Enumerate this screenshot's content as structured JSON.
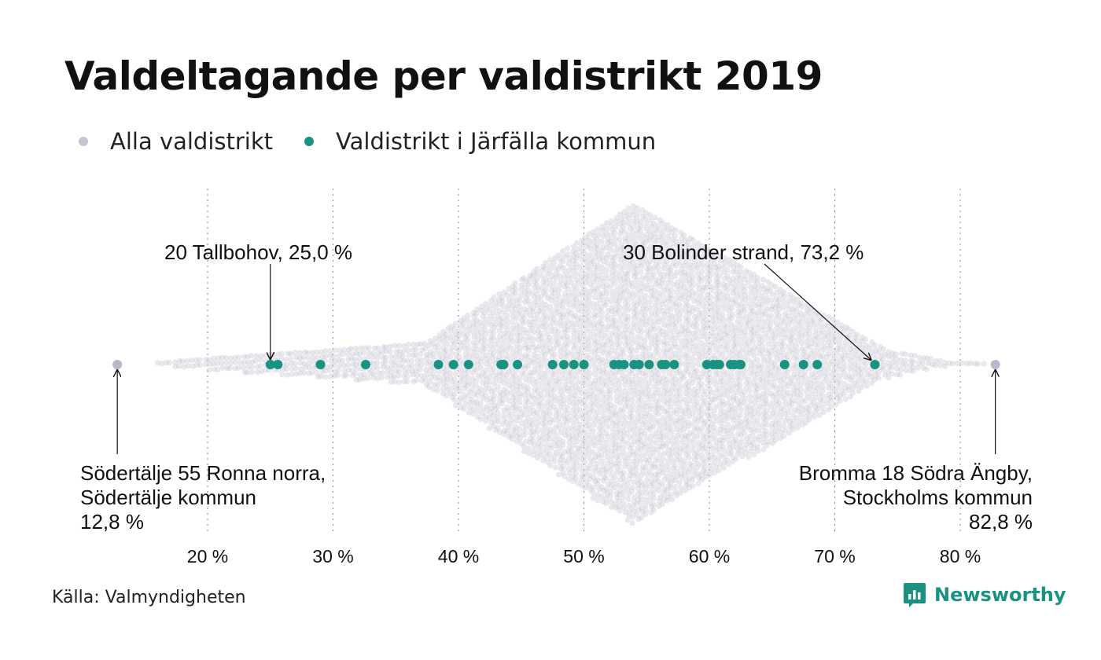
{
  "chart_data": {
    "type": "scatter",
    "subtype": "beeswarm",
    "title": "Valdeltagande per valdistrikt 2019",
    "x_axis": {
      "range": [
        12,
        86
      ],
      "ticks": [
        20,
        30,
        40,
        50,
        60,
        70,
        80
      ],
      "tick_labels": [
        "20 %",
        "30 %",
        "40 %",
        "50 %",
        "60 %",
        "70 %",
        "80 %"
      ],
      "grid": "dotted vertical"
    },
    "legend": {
      "placement": "top-left",
      "entries": [
        {
          "label": "Alla valdistrikt",
          "color": "#c6c5d3"
        },
        {
          "label": "Valdistrikt i Järfälla kommun",
          "color": "#1a9281"
        }
      ]
    },
    "series": [
      {
        "name": "Valdistrikt i Järfälla kommun",
        "color": "#1a9281",
        "x": [
          25.0,
          25.6,
          29.0,
          32.6,
          38.4,
          39.6,
          40.8,
          43.4,
          43.6,
          44.7,
          47.5,
          48.4,
          49.2,
          50.0,
          52.4,
          52.8,
          53.2,
          54.0,
          54.4,
          55.2,
          56.2,
          56.5,
          57.2,
          59.8,
          60.3,
          60.6,
          60.8,
          61.7,
          62.0,
          62.4,
          62.5,
          66.0,
          67.5,
          68.6,
          73.2
        ]
      },
      {
        "name": "Alla valdistrikt",
        "color": "#c6c5d3",
        "extremes": [
          12.8,
          82.8
        ]
      }
    ],
    "annotations": [
      {
        "text": "20 Tallbohov, 25,0 %",
        "x": 25.0
      },
      {
        "text": "30 Bolinder strand, 73,2 %",
        "x": 73.2
      },
      {
        "lines": [
          "Södertälje 55 Ronna norra,",
          "Södertälje kommun",
          "12,8 %"
        ],
        "x": 12.8
      },
      {
        "lines": [
          "Bromma 18 Södra Ängby,",
          "Stockholms kommun",
          "82,8 %"
        ],
        "x": 82.8
      }
    ]
  },
  "legend": {
    "all_label": "Alla valdistrikt",
    "jarfalla_label": "Valdistrikt i Järfälla kommun"
  },
  "footer": {
    "source": "Källa: Valmyndigheten",
    "brand": "Newsworthy",
    "brand_color": "#1a9281",
    "logo_icon": "newsworthy-logo-icon"
  }
}
